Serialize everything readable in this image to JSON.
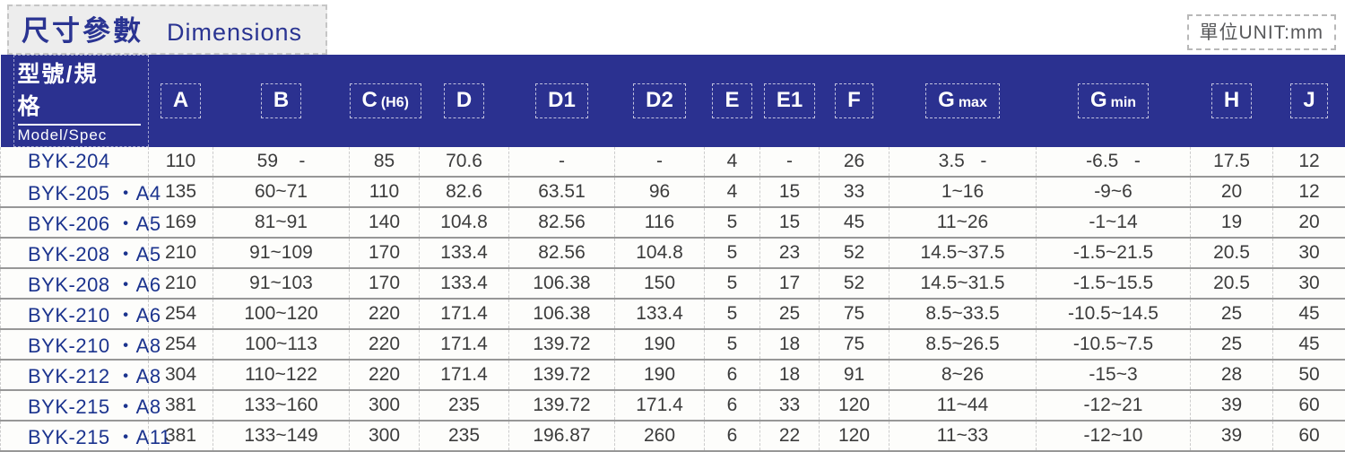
{
  "page": {
    "title_zh": "尺寸參數",
    "title_en": "Dimensions",
    "unit_label": "單位UNIT:mm"
  },
  "table": {
    "model_header": {
      "zh": "型號/規格",
      "en": "Model/Spec"
    },
    "columns": [
      {
        "key": "a",
        "label": "A"
      },
      {
        "key": "b",
        "label": "B"
      },
      {
        "key": "c",
        "label": "C",
        "sub": "(H6)"
      },
      {
        "key": "d",
        "label": "D"
      },
      {
        "key": "d1",
        "label": "D1"
      },
      {
        "key": "d2",
        "label": "D2"
      },
      {
        "key": "e",
        "label": "E"
      },
      {
        "key": "e1",
        "label": "E1"
      },
      {
        "key": "f",
        "label": "F"
      },
      {
        "key": "gmax",
        "label": "G",
        "sub": "max"
      },
      {
        "key": "gmin",
        "label": "G",
        "sub": "min"
      },
      {
        "key": "h",
        "label": "H"
      },
      {
        "key": "j",
        "label": "J"
      }
    ],
    "rows": [
      {
        "model": "BYK-204",
        "cells": [
          "110",
          "59    -",
          "85",
          "70.6",
          "-",
          "-",
          "4",
          "-",
          "26",
          "3.5   -",
          "-6.5   -",
          "17.5",
          "12"
        ]
      },
      {
        "model": "BYK-205 ・A4",
        "cells": [
          "135",
          "60~71",
          "110",
          "82.6",
          "63.51",
          "96",
          "4",
          "15",
          "33",
          "1~16",
          "-9~6",
          "20",
          "12"
        ]
      },
      {
        "model": "BYK-206 ・A5",
        "cells": [
          "169",
          "81~91",
          "140",
          "104.8",
          "82.56",
          "116",
          "5",
          "15",
          "45",
          "11~26",
          "-1~14",
          "19",
          "20"
        ]
      },
      {
        "model": "BYK-208 ・A5",
        "cells": [
          "210",
          "91~109",
          "170",
          "133.4",
          "82.56",
          "104.8",
          "5",
          "23",
          "52",
          "14.5~37.5",
          "-1.5~21.5",
          "20.5",
          "30"
        ]
      },
      {
        "model": "BYK-208 ・A6",
        "cells": [
          "210",
          "91~103",
          "170",
          "133.4",
          "106.38",
          "150",
          "5",
          "17",
          "52",
          "14.5~31.5",
          "-1.5~15.5",
          "20.5",
          "30"
        ]
      },
      {
        "model": "BYK-210 ・A6",
        "cells": [
          "254",
          "100~120",
          "220",
          "171.4",
          "106.38",
          "133.4",
          "5",
          "25",
          "75",
          "8.5~33.5",
          "-10.5~14.5",
          "25",
          "45"
        ]
      },
      {
        "model": "BYK-210 ・A8",
        "cells": [
          "254",
          "100~113",
          "220",
          "171.4",
          "139.72",
          "190",
          "5",
          "18",
          "75",
          "8.5~26.5",
          "-10.5~7.5",
          "25",
          "45"
        ]
      },
      {
        "model": "BYK-212 ・A8",
        "cells": [
          "304",
          "110~122",
          "220",
          "171.4",
          "139.72",
          "190",
          "6",
          "18",
          "91",
          "8~26",
          "-15~3",
          "28",
          "50"
        ]
      },
      {
        "model": "BYK-215 ・A8",
        "cells": [
          "381",
          "133~160",
          "300",
          "235",
          "139.72",
          "171.4",
          "6",
          "33",
          "120",
          "11~44",
          "-12~21",
          "39",
          "60"
        ]
      },
      {
        "model": "BYK-215 ・A11",
        "cells": [
          "381",
          "133~149",
          "300",
          "235",
          "196.87",
          "260",
          "6",
          "22",
          "120",
          "11~33",
          "-12~10",
          "39",
          "60"
        ]
      }
    ]
  }
}
